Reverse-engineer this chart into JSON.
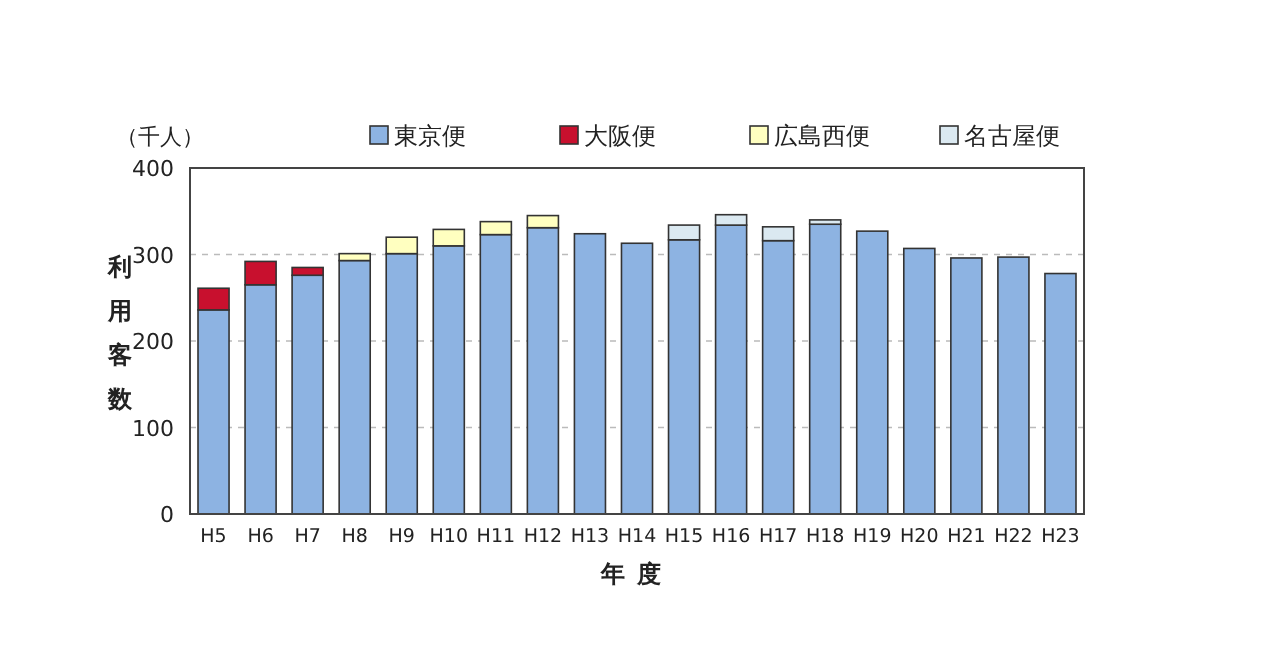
{
  "chart_data": {
    "type": "bar",
    "stacked": true,
    "categories": [
      "H5",
      "H6",
      "H7",
      "H8",
      "H9",
      "H10",
      "H11",
      "H12",
      "H13",
      "H14",
      "H15",
      "H16",
      "H17",
      "H18",
      "H19",
      "H20",
      "H21",
      "H22",
      "H23"
    ],
    "series": [
      {
        "name": "東京便",
        "color": "#8db3e2",
        "values": [
          236,
          265,
          276,
          293,
          301,
          310,
          323,
          331,
          324,
          313,
          317,
          334,
          316,
          335,
          327,
          307,
          296,
          297,
          278
        ]
      },
      {
        "name": "大阪便",
        "color": "#c8102e",
        "values": [
          25,
          27,
          9,
          null,
          null,
          null,
          null,
          null,
          null,
          null,
          null,
          null,
          null,
          null,
          null,
          null,
          null,
          null,
          null
        ]
      },
      {
        "name": "広島西便",
        "color": "#ffffc0",
        "values": [
          null,
          null,
          null,
          8,
          19,
          19,
          15,
          14,
          null,
          null,
          null,
          null,
          null,
          null,
          null,
          null,
          null,
          null,
          null
        ]
      },
      {
        "name": "名古屋便",
        "color": "#dbe9f1",
        "values": [
          null,
          null,
          null,
          null,
          null,
          null,
          null,
          null,
          null,
          null,
          17,
          12,
          16,
          5,
          null,
          null,
          null,
          null,
          null
        ]
      }
    ],
    "ylim": [
      0,
      400
    ],
    "yticks": [
      0,
      100,
      200,
      300,
      400
    ],
    "ylabel": "利用客数",
    "xlabel": "年度",
    "annotations": [
      "（千人）"
    ],
    "grid": "y",
    "legend": "top"
  }
}
